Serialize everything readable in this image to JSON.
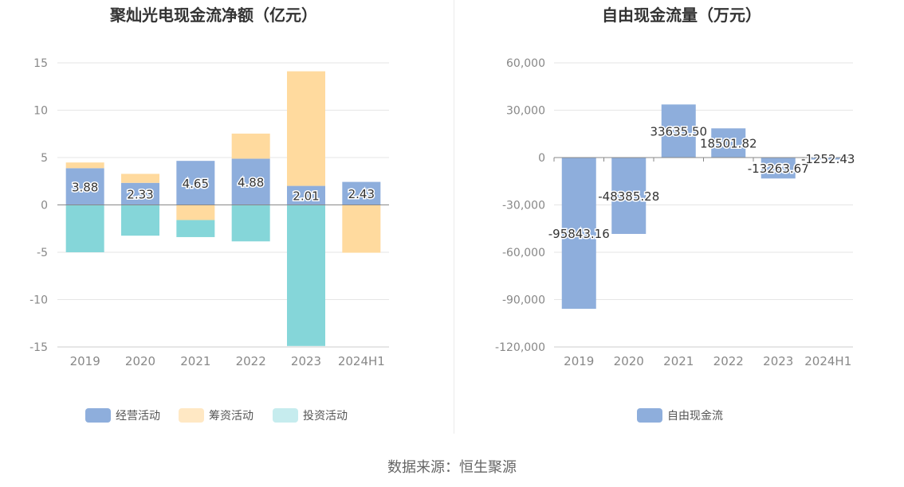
{
  "colors": {
    "operating": "#8EAEDC",
    "financing": "#FFDA9E",
    "investing": "#85D6D9",
    "investing_legend": "#C6ECEE",
    "financing_legend": "#FFE8C4",
    "free_cash_flow": "#8EAEDC",
    "grid": "#e6e6e6",
    "axis_text": "#888888",
    "title": "#333333"
  },
  "source_text": "数据来源：恒生聚源",
  "chart_data": [
    {
      "type": "bar",
      "stacked": true,
      "title": "聚灿光电现金流净额（亿元）",
      "categories": [
        "2019",
        "2020",
        "2021",
        "2022",
        "2023",
        "2024H1"
      ],
      "ylim": [
        -15,
        15
      ],
      "yticks": [
        15,
        10,
        5,
        0,
        -5,
        -10,
        -15
      ],
      "grid": true,
      "legend_position": "bottom-center",
      "series": [
        {
          "name": "经营活动",
          "values": [
            3.88,
            2.33,
            4.65,
            4.88,
            2.01,
            2.43
          ],
          "labels": [
            "3.88",
            "2.33",
            "4.65",
            "4.88",
            "2.01",
            "2.43"
          ]
        },
        {
          "name": "筹资活动",
          "values": [
            0.6,
            0.95,
            -1.6,
            2.65,
            12.1,
            -5.05
          ]
        },
        {
          "name": "投资活动",
          "values": [
            -5.0,
            -3.25,
            -1.8,
            -3.85,
            -14.9,
            0
          ]
        }
      ]
    },
    {
      "type": "bar",
      "stacked": false,
      "title": "自由现金流量（万元）",
      "categories": [
        "2019",
        "2020",
        "2021",
        "2022",
        "2023",
        "2024H1"
      ],
      "ylim": [
        -120000,
        60000
      ],
      "yticks": [
        60000,
        30000,
        0,
        -30000,
        -60000,
        -90000,
        -120000
      ],
      "ytick_labels": [
        "60,000",
        "30,000",
        "0",
        "-30,000",
        "-60,000",
        "-90,000",
        "-120,000"
      ],
      "grid": true,
      "legend_position": "bottom-center",
      "series": [
        {
          "name": "自由现金流",
          "values": [
            -95843.16,
            -48385.28,
            33635.5,
            18501.82,
            -13263.67,
            -1252.43
          ],
          "labels": [
            "-95843.16",
            "-48385.28",
            "33635.50",
            "18501.82",
            "-13263.67",
            "-1252.43"
          ]
        }
      ]
    }
  ]
}
